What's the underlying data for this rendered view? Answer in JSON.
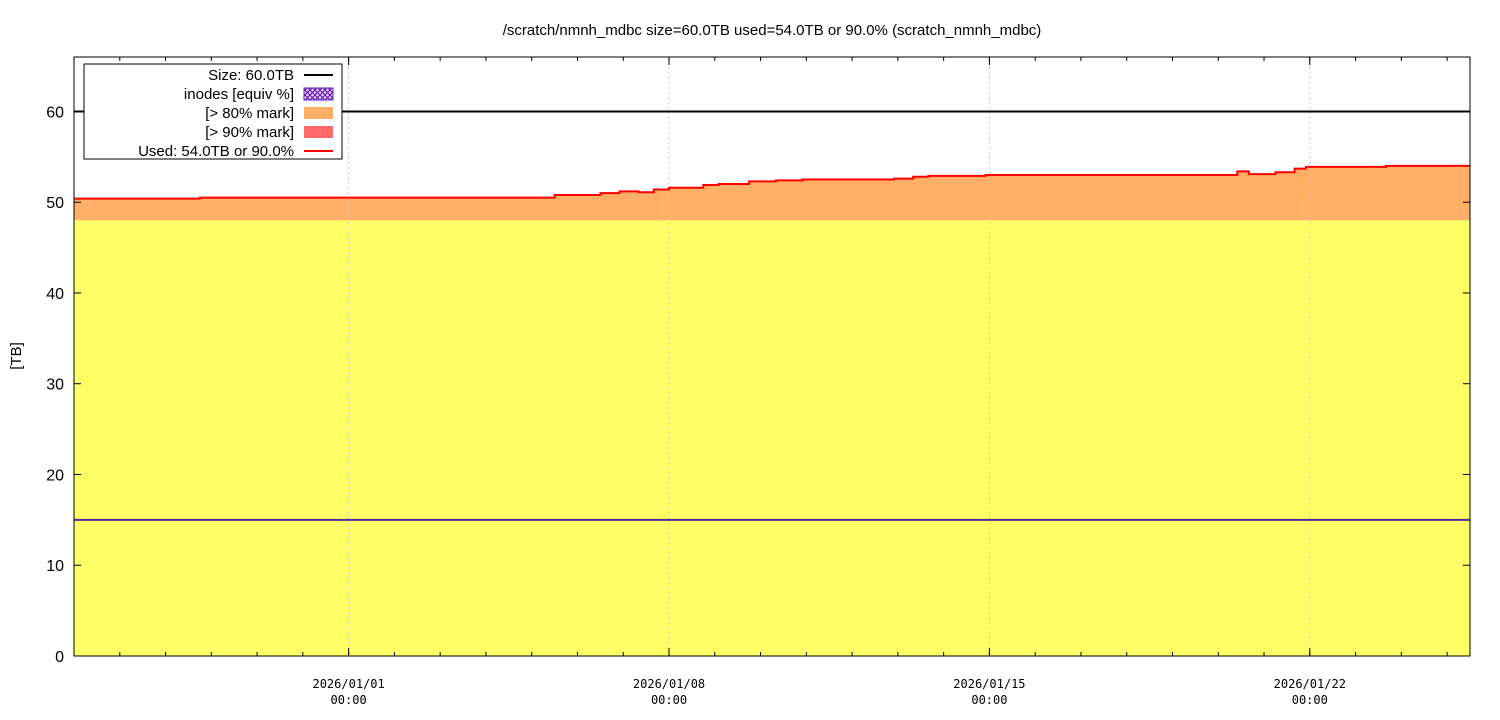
{
  "chart_data": {
    "type": "area",
    "title": "/scratch/nmnh_mdbc size=60.0TB used=54.0TB or 90.0% (scratch_nmnh_mdbc)",
    "ylabel": "[TB]",
    "xlabel": "",
    "ylim": [
      0,
      66
    ],
    "xlim": [
      "2025-12-26 00:00",
      "2026-01-25 12:00"
    ],
    "yticks": [
      0,
      10,
      20,
      30,
      40,
      50,
      60
    ],
    "xticks": [
      {
        "date": "2026-01-01 00:00",
        "label1": "2026/01/01",
        "label2": "00:00"
      },
      {
        "date": "2026-01-08 00:00",
        "label1": "2026/01/08",
        "label2": "00:00"
      },
      {
        "date": "2026-01-15 00:00",
        "label1": "2026/01/15",
        "label2": "00:00"
      },
      {
        "date": "2026-01-22 00:00",
        "label1": "2026/01/22",
        "label2": "00:00"
      }
    ],
    "grid": true,
    "legend_position": "top-left",
    "size_tb": 60,
    "mark80_tb": 48,
    "mark90_tb": 54,
    "inodes_equiv_tb": 15,
    "legend": [
      {
        "label": "Size: 60.0TB",
        "kind": "line",
        "color": "#000000"
      },
      {
        "label": "inodes [equiv %]",
        "kind": "hatch",
        "color": "#6a1fb0"
      },
      {
        "label": "[> 80% mark]",
        "kind": "fill",
        "color": "#ffb066"
      },
      {
        "label": "[> 90% mark]",
        "kind": "fill",
        "color": "#ff6a6a"
      },
      {
        "label": "Used: 54.0TB or 90.0%",
        "kind": "line",
        "color": "#ff0000"
      }
    ],
    "used_series": [
      [
        "2025-12-26 00:00",
        50.4
      ],
      [
        "2025-12-28 18:00",
        50.4
      ],
      [
        "2025-12-28 18:00",
        50.5
      ],
      [
        "2026-01-04 12:00",
        50.5
      ],
      [
        "2026-01-05 00:00",
        50.5
      ],
      [
        "2026-01-05 12:00",
        50.5
      ],
      [
        "2026-01-05 12:00",
        50.8
      ],
      [
        "2026-01-06 12:00",
        50.8
      ],
      [
        "2026-01-06 12:00",
        51.0
      ],
      [
        "2026-01-06 22:00",
        51.0
      ],
      [
        "2026-01-06 22:00",
        51.2
      ],
      [
        "2026-01-07 08:00",
        51.2
      ],
      [
        "2026-01-07 08:00",
        51.1
      ],
      [
        "2026-01-07 16:00",
        51.1
      ],
      [
        "2026-01-07 16:00",
        51.4
      ],
      [
        "2026-01-08 00:00",
        51.4
      ],
      [
        "2026-01-08 00:00",
        51.6
      ],
      [
        "2026-01-08 18:00",
        51.6
      ],
      [
        "2026-01-08 18:00",
        51.9
      ],
      [
        "2026-01-09 02:00",
        51.9
      ],
      [
        "2026-01-09 02:00",
        52.0
      ],
      [
        "2026-01-09 18:00",
        52.0
      ],
      [
        "2026-01-09 18:00",
        52.3
      ],
      [
        "2026-01-10 08:00",
        52.3
      ],
      [
        "2026-01-10 08:00",
        52.4
      ],
      [
        "2026-01-10 22:00",
        52.4
      ],
      [
        "2026-01-10 22:00",
        52.5
      ],
      [
        "2026-01-12 22:00",
        52.5
      ],
      [
        "2026-01-12 22:00",
        52.6
      ],
      [
        "2026-01-13 08:00",
        52.6
      ],
      [
        "2026-01-13 08:00",
        52.8
      ],
      [
        "2026-01-13 16:00",
        52.8
      ],
      [
        "2026-01-13 16:00",
        52.9
      ],
      [
        "2026-01-14 22:00",
        52.9
      ],
      [
        "2026-01-14 22:00",
        53.0
      ],
      [
        "2026-01-20 10:00",
        53.0
      ],
      [
        "2026-01-20 10:00",
        53.4
      ],
      [
        "2026-01-20 16:00",
        53.4
      ],
      [
        "2026-01-20 16:00",
        53.1
      ],
      [
        "2026-01-21 06:00",
        53.1
      ],
      [
        "2026-01-21 06:00",
        53.3
      ],
      [
        "2026-01-21 16:00",
        53.3
      ],
      [
        "2026-01-21 16:00",
        53.7
      ],
      [
        "2026-01-21 22:00",
        53.7
      ],
      [
        "2026-01-21 22:00",
        53.9
      ],
      [
        "2026-01-23 16:00",
        53.9
      ],
      [
        "2026-01-23 16:00",
        54.0
      ],
      [
        "2026-01-25 12:00",
        54.0
      ]
    ],
    "colors": {
      "below80": "#ffff66",
      "above80": "#ffb066",
      "above90": "#ff6a6a",
      "used_line": "#ff0000",
      "size_line": "#000000",
      "inodes_line": "#4b2a9a",
      "grid": "#c8c8c8"
    }
  }
}
